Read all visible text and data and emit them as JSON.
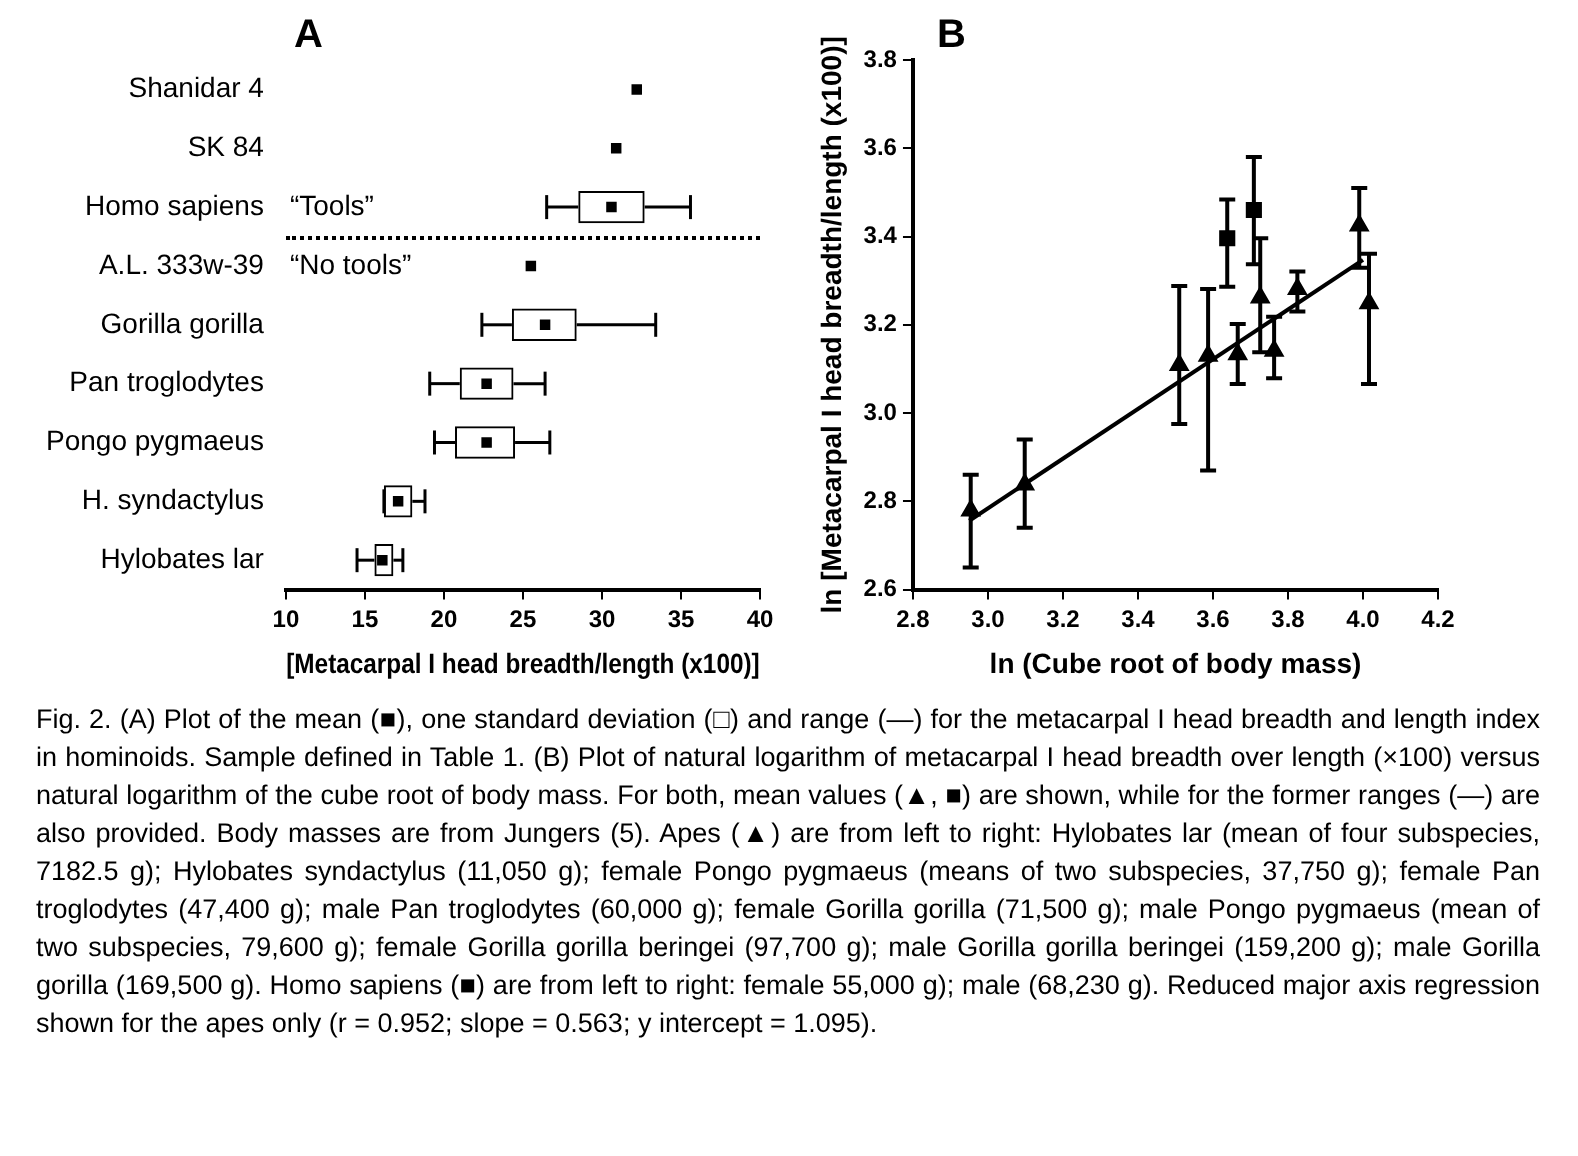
{
  "chart_data": [
    {
      "type": "box",
      "orientation": "horizontal",
      "title": "A",
      "xlabel": "[Metacarpal I head breadth/length (x100)]",
      "color": "#000000",
      "categories": [
        "Shanidar 4",
        "SK 84",
        "Homo sapiens",
        "A.L. 333w-39",
        "Gorilla gorilla",
        "Pan troglodytes",
        "Pongo pygmaeus",
        "H. syndactylus",
        "Hylobates lar"
      ],
      "boxes": [
        null,
        null,
        {
          "low": 26.5,
          "q1": 28.5,
          "median": 30.6,
          "q3": 32.7,
          "high": 35.6
        },
        null,
        {
          "low": 22.4,
          "q1": 24.3,
          "median": 26.4,
          "q3": 28.4,
          "high": 33.4
        },
        {
          "low": 19.1,
          "q1": 21.0,
          "median": 22.7,
          "q3": 24.4,
          "high": 26.4
        },
        {
          "low": 19.4,
          "q1": 20.7,
          "median": 22.7,
          "q3": 24.5,
          "high": 26.7
        },
        {
          "low": 16.2,
          "q1": 16.2,
          "median": 17.1,
          "q3": 18.0,
          "high": 18.8
        },
        {
          "low": 14.5,
          "q1": 15.6,
          "median": 16.1,
          "q3": 16.8,
          "high": 17.4
        }
      ],
      "series": [
        {
          "type": "scatter",
          "color": "#000000",
          "x": [
            "Shanidar 4",
            "SK 84",
            "A.L. 333w-39"
          ],
          "values": [
            32.2,
            30.9,
            25.5
          ]
        }
      ],
      "marker": "square",
      "xlim": [
        10,
        40
      ],
      "xticks": [
        10,
        15,
        20,
        25,
        30,
        35,
        40
      ],
      "grid": false,
      "annotations": [
        "“Tools”",
        "“No tools”"
      ]
    },
    {
      "type": "scatter",
      "title": "B",
      "xlabel": "ln (Cube root of body mass)",
      "ylabel": "ln [Metacarpal I head breadth/length (x100)]",
      "xlim": [
        2.8,
        4.2
      ],
      "xticks": [
        2.8,
        {
          "value": 3,
          "label": "3.0"
        },
        3.2,
        3.4,
        3.6,
        3.8,
        {
          "value": 4,
          "label": "4.0"
        },
        4.2
      ],
      "ylim": [
        2.6,
        3.8
      ],
      "yticks": [
        2.6,
        2.8,
        {
          "value": 3,
          "label": "3.0"
        },
        3.2,
        3.4,
        3.6,
        3.8
      ],
      "grid": false,
      "series": [
        {
          "type": "scatter",
          "marker": "triangle",
          "color": "#000000",
          "x": [
            2.954,
            3.098,
            3.51,
            3.587,
            3.666,
            3.726,
            3.763,
            3.825,
            3.99,
            4.016
          ],
          "values": [
            2.779,
            2.838,
            3.109,
            3.13,
            3.133,
            3.262,
            3.141,
            3.281,
            3.425,
            3.249
          ],
          "errors": [
            [
              2.65,
              2.86
            ],
            [
              2.74,
              2.94
            ],
            [
              2.975,
              3.288
            ],
            [
              2.87,
              3.281
            ],
            [
              3.066,
              3.202
            ],
            [
              3.138,
              3.396
            ],
            [
              3.079,
              3.218
            ],
            [
              3.23,
              3.321
            ],
            [
              3.329,
              3.51
            ],
            [
              3.066,
              3.361
            ]
          ]
        },
        {
          "type": "scatter",
          "marker": "square",
          "color": "#000000",
          "x": [
            3.638,
            3.709
          ],
          "values": [
            3.396,
            3.46
          ],
          "errors": [
            [
              3.286,
              3.484
            ],
            [
              3.337,
              3.58
            ]
          ]
        },
        {
          "type": "line",
          "marker": "none",
          "color": "#000000",
          "x": [
            2.95,
            4.0
          ],
          "values": [
            2.756,
            3.347
          ]
        }
      ]
    },
    {
      "type": "other",
      "annotations": [
        "Fig. 2. (A) Plot of the mean (■), one standard deviation (□) and range (—) for the metacarpal I head breadth and length index in hominoids. Sample defined in Table 1. (B) Plot of natural logarithm of metacarpal I head breadth over length (×100) versus natural logarithm of the cube root of body mass. For both, mean values (▲, ■) are shown, while for the former ranges (—) are also provided. Body masses are from Jungers (5). Apes (▲) are from left to right: Hylobates lar (mean of four subspecies, 7182.5 g); Hylobates syndactylus (11,050 g); female Pongo pygmaeus (means of two subspecies, 37,750 g); female Pan troglodytes (47,400 g); male Pan troglodytes (60,000 g); female Gorilla gorilla (71,500 g); male Pongo pygmaeus (mean of two subspecies, 79,600 g); female Gorilla gorilla beringei (97,700 g); male Gorilla gorilla beringei (159,200 g); male Gorilla gorilla (169,500 g). Homo sapiens (■) are from left to right: female 55,000 g); male (68,230 g). Reduced major axis regression shown for the apes only (r = 0.952; slope = 0.563; y intercept = 1.095)."
      ]
    }
  ]
}
